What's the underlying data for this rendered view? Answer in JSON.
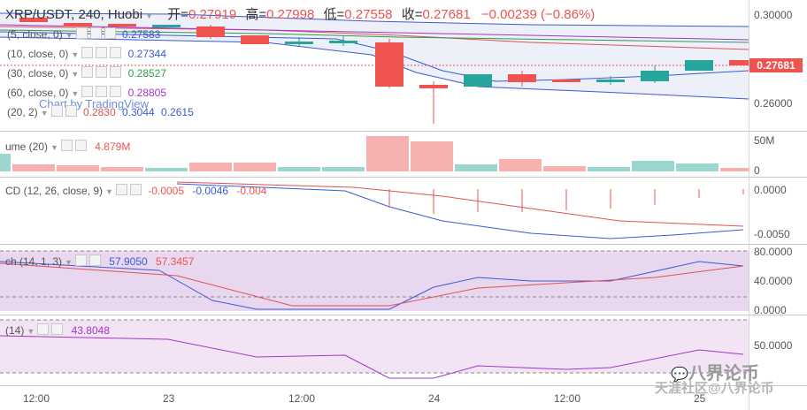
{
  "header": {
    "symbol": "XRP/USDT, 240, Huobi",
    "open_label": "开=",
    "open": "0.27919",
    "high_label": "高=",
    "high": "0.27998",
    "low_label": "低=",
    "low": "0.27558",
    "close_label": "收=",
    "close": "0.27681",
    "change": "−0.00239 (−0.86%)"
  },
  "ma": [
    {
      "label": "(5, close, 0)",
      "value": "0.27583",
      "color": "#3b5bd6"
    },
    {
      "label": "(10, close, 0)",
      "value": "0.27344",
      "color": "#3b5bd6"
    },
    {
      "label": "(30, close, 0)",
      "value": "0.28527",
      "color": "#2e9d49"
    },
    {
      "label": "(60, close, 0)",
      "value": "0.28805",
      "color": "#a535c9"
    }
  ],
  "bb": {
    "label": "(20, 2)",
    "v1": "0.2830",
    "v2": "0.3044",
    "v3": "0.2615"
  },
  "watermark": "Chart by TradingView",
  "price_axis": [
    "0.30000",
    "0.26000"
  ],
  "last_price": "0.27681",
  "volume": {
    "label": "ume (20)",
    "value": "4.879M",
    "axis": [
      "50M",
      "0"
    ]
  },
  "macd": {
    "label": "CD (12, 26, close, 9)",
    "v1": "-0.0005",
    "v2": "-0.0046",
    "v3": "-0.004",
    "axis": [
      "0.0000",
      "-0.0050"
    ]
  },
  "stoch": {
    "label": "ch (14, 1, 3)",
    "v1": "57.9050",
    "v2": "57.3457",
    "axis": [
      "80.0000",
      "40.0000",
      "0.0000"
    ]
  },
  "rsi": {
    "label": "(14)",
    "value": "43.8048",
    "axis": [
      "50.0000"
    ]
  },
  "time_axis": [
    "12:00",
    "23",
    "12:00",
    "24",
    "12:00",
    "25"
  ],
  "brand_mark": "八界论币",
  "footer_mark": "天涯社区@八界论币",
  "colors": {
    "up": "#26a69a",
    "down": "#ef5350",
    "ma_blue": "#3b5bd6",
    "ma_red": "#e05252"
  }
}
